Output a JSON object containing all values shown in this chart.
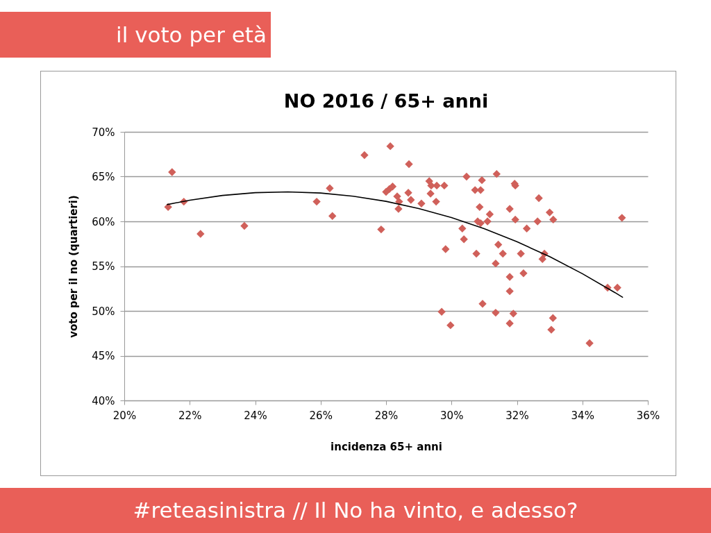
{
  "chart_data": {
    "type": "scatter",
    "title": "NO 2016 / 65+ anni",
    "xlabel": "incidenza 65+ anni",
    "ylabel": "voto per il no (quartieri)",
    "annotations": [
      "il voto per età",
      "#reteasinistra // Il No ha vinto, e adesso?"
    ],
    "xlim": [
      20,
      36
    ],
    "ylim": [
      40,
      70
    ],
    "xticks": [
      {
        "value": 20,
        "label": "20%"
      },
      {
        "value": 22,
        "label": "22%"
      },
      {
        "value": 24,
        "label": "24%"
      },
      {
        "value": 26,
        "label": "26%"
      },
      {
        "value": 28,
        "label": "28%"
      },
      {
        "value": 30,
        "label": "30%"
      },
      {
        "value": 32,
        "label": "32%"
      },
      {
        "value": 34,
        "label": "34%"
      },
      {
        "value": 36,
        "label": "36%"
      }
    ],
    "yticks": [
      {
        "value": 40,
        "label": "40%"
      },
      {
        "value": 45,
        "label": "45%"
      },
      {
        "value": 50,
        "label": "50%"
      },
      {
        "value": 55,
        "label": "55%"
      },
      {
        "value": 60,
        "label": "60%"
      },
      {
        "value": 65,
        "label": "65%"
      },
      {
        "value": 70,
        "label": "70%"
      }
    ],
    "grid": "y",
    "series": [
      {
        "color": "#d0605a",
        "marker": "diamond",
        "x": [
          21.34,
          21.46,
          21.82,
          22.33,
          23.67,
          25.88,
          26.28,
          26.36,
          27.34,
          27.85,
          28.13,
          28.7,
          28.0,
          28.1,
          28.2,
          28.34,
          28.38,
          28.4,
          28.68,
          28.76,
          29.08,
          29.32,
          29.38,
          29.36,
          29.53,
          29.55,
          29.78,
          29.82,
          29.7,
          29.97,
          30.33,
          30.38,
          30.46,
          30.72,
          30.76,
          30.8,
          30.86,
          30.89,
          30.93,
          30.95,
          30.89,
          31.1,
          31.17,
          31.38,
          31.35,
          31.43,
          31.35,
          31.57,
          31.78,
          31.78,
          31.78,
          31.78,
          31.93,
          31.95,
          31.95,
          31.89,
          32.12,
          32.2,
          32.3,
          32.63,
          32.67,
          32.78,
          32.84,
          33.0,
          33.11,
          33.1,
          33.05,
          34.22,
          34.77,
          35.07,
          35.21
        ],
        "values": [
          61.6,
          65.5,
          62.2,
          58.6,
          59.5,
          62.2,
          63.7,
          60.6,
          67.4,
          59.1,
          68.4,
          66.4,
          63.3,
          63.6,
          63.9,
          62.8,
          61.4,
          62.2,
          63.2,
          62.4,
          62.0,
          64.5,
          64.0,
          63.1,
          62.2,
          64.0,
          64.0,
          56.9,
          49.9,
          48.4,
          59.2,
          58.0,
          65.0,
          63.5,
          56.4,
          60.0,
          61.6,
          63.5,
          64.6,
          50.8,
          59.8,
          60.0,
          60.8,
          65.3,
          55.3,
          57.4,
          49.8,
          56.4,
          61.4,
          53.8,
          52.2,
          48.6,
          64.2,
          64.0,
          60.2,
          49.7,
          56.4,
          54.2,
          59.2,
          60.0,
          62.6,
          55.8,
          56.4,
          61.0,
          60.2,
          49.2,
          47.9,
          46.4,
          52.6,
          52.6,
          60.4
        ]
      },
      {
        "type": "line",
        "color": "#000000",
        "marker": "none",
        "line_style": "solid",
        "x": [
          21.3,
          22,
          23,
          24,
          25,
          26,
          27,
          28,
          29,
          30,
          31,
          32,
          33,
          34,
          35,
          35.24
        ],
        "values": [
          61.87,
          62.37,
          62.9,
          63.21,
          63.3,
          63.17,
          62.81,
          62.24,
          61.44,
          60.43,
          59.19,
          57.73,
          56.06,
          54.16,
          52.04,
          51.5
        ]
      }
    ]
  }
}
